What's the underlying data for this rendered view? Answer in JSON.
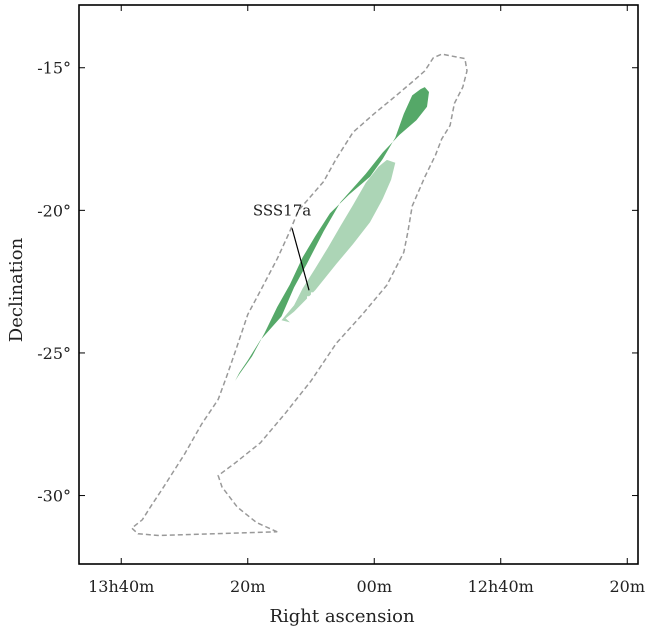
{
  "chart_data": {
    "type": "skymap-contour",
    "xlabel": "Right ascension",
    "ylabel": "Declination",
    "x_ticks": [
      "13h40m",
      "20m",
      "00m",
      "12h40m",
      "20m"
    ],
    "y_ticks": [
      "-15°",
      "-20°",
      "-25°",
      "-30°"
    ],
    "xlim_hours": [
      13.778,
      12.305
    ],
    "ylim_deg": [
      -32.4,
      -12.8
    ],
    "grid": false,
    "annotation": {
      "label": "SSS17a",
      "ra_hours": 13.1639,
      "dec_deg": -23.05
    },
    "regions": [
      {
        "kind": "outer-dashed",
        "color": "#999999",
        "polygon_radec": [
          [
            13.2556,
            -31.27
          ],
          [
            13.31,
            -30.95
          ],
          [
            13.3611,
            -30.4
          ],
          [
            13.4011,
            -29.7
          ],
          [
            13.4111,
            -29.3
          ],
          [
            13.3667,
            -28.86
          ],
          [
            13.3,
            -28.15
          ],
          [
            13.2333,
            -27.1
          ],
          [
            13.1667,
            -25.98
          ],
          [
            13.1,
            -24.66
          ],
          [
            13.0333,
            -23.68
          ],
          [
            12.9667,
            -22.62
          ],
          [
            12.9222,
            -21.47
          ],
          [
            12.9111,
            -20.73
          ],
          [
            12.9,
            -19.85
          ],
          [
            12.8667,
            -18.83
          ],
          [
            12.8389,
            -18.07
          ],
          [
            12.8222,
            -17.5
          ],
          [
            12.8,
            -17.02
          ],
          [
            12.7889,
            -16.25
          ],
          [
            12.7667,
            -15.68
          ],
          [
            12.7556,
            -15.11
          ],
          [
            12.7611,
            -14.68
          ],
          [
            12.8222,
            -14.52
          ],
          [
            12.8444,
            -14.65
          ],
          [
            12.8667,
            -15.11
          ],
          [
            12.9,
            -15.5
          ],
          [
            12.9444,
            -16.0
          ],
          [
            13.0,
            -16.61
          ],
          [
            13.0556,
            -17.26
          ],
          [
            13.1,
            -18.19
          ],
          [
            13.1333,
            -18.99
          ],
          [
            13.2,
            -20.01
          ],
          [
            13.2222,
            -20.73
          ],
          [
            13.2556,
            -21.7
          ],
          [
            13.3,
            -22.82
          ],
          [
            13.3333,
            -23.65
          ],
          [
            13.3667,
            -24.97
          ],
          [
            13.3889,
            -25.82
          ],
          [
            13.4111,
            -26.63
          ],
          [
            13.4556,
            -27.51
          ],
          [
            13.5,
            -28.55
          ],
          [
            13.5556,
            -29.71
          ],
          [
            13.5889,
            -30.38
          ],
          [
            13.6111,
            -30.85
          ],
          [
            13.6389,
            -31.14
          ],
          [
            13.6222,
            -31.34
          ],
          [
            13.5667,
            -31.4
          ]
        ]
      },
      {
        "kind": "90-percent",
        "color": "#55a868",
        "polygon_radec": [
          [
            13.3667,
            -25.98
          ],
          [
            13.3556,
            -25.7
          ],
          [
            13.3333,
            -25.26
          ],
          [
            13.3,
            -24.55
          ],
          [
            13.2444,
            -23.72
          ],
          [
            13.2111,
            -22.7
          ],
          [
            13.1778,
            -21.88
          ],
          [
            13.1333,
            -20.73
          ],
          [
            13.0889,
            -19.71
          ],
          [
            13.0222,
            -18.72
          ],
          [
            12.9778,
            -17.97
          ],
          [
            12.9333,
            -17.35
          ],
          [
            12.8889,
            -16.84
          ],
          [
            12.8611,
            -16.37
          ],
          [
            12.8556,
            -15.85
          ],
          [
            12.8667,
            -15.68
          ],
          [
            12.8778,
            -15.75
          ],
          [
            12.9,
            -15.97
          ],
          [
            12.9222,
            -16.62
          ],
          [
            12.9444,
            -17.45
          ],
          [
            12.9778,
            -18.2
          ],
          [
            13.0111,
            -18.82
          ],
          [
            13.0667,
            -19.45
          ],
          [
            13.1167,
            -20.1
          ],
          [
            13.1556,
            -20.91
          ],
          [
            13.1889,
            -21.65
          ],
          [
            13.2222,
            -22.6
          ],
          [
            13.2556,
            -23.39
          ],
          [
            13.2889,
            -24.3
          ],
          [
            13.3222,
            -25.12
          ],
          [
            13.3556,
            -25.75
          ]
        ]
      },
      {
        "kind": "50-percent",
        "color": "#acd5b6",
        "polygon_radec": [
          [
            13.2222,
            -23.93
          ],
          [
            13.2333,
            -23.79
          ],
          [
            13.2111,
            -23.55
          ],
          [
            13.1556,
            -22.8
          ],
          [
            13.1,
            -21.88
          ],
          [
            13.0556,
            -21.18
          ],
          [
            13.0111,
            -20.42
          ],
          [
            12.9778,
            -19.6
          ],
          [
            12.9556,
            -18.93
          ],
          [
            12.9444,
            -18.33
          ],
          [
            12.9667,
            -18.23
          ],
          [
            12.9889,
            -18.47
          ],
          [
            13.0222,
            -19.03
          ],
          [
            13.0556,
            -19.81
          ],
          [
            13.0889,
            -20.55
          ],
          [
            13.1222,
            -21.31
          ],
          [
            13.1556,
            -22.04
          ],
          [
            13.1889,
            -22.74
          ],
          [
            13.2111,
            -23.33
          ],
          [
            13.2444,
            -23.85
          ]
        ]
      }
    ]
  }
}
